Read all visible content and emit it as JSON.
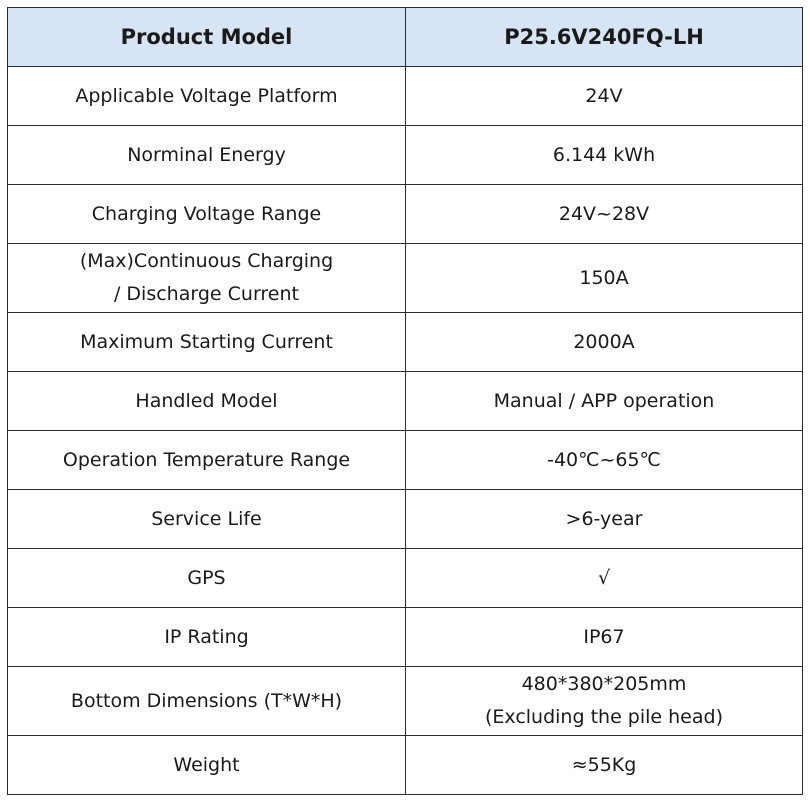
{
  "table": {
    "header": {
      "label": "Product Model",
      "value": "P25.6V240FQ-LH"
    },
    "rows": [
      {
        "label": "Applicable Voltage Platform",
        "value": "24V"
      },
      {
        "label": "Norminal Energy",
        "value": "6.144 kWh"
      },
      {
        "label": "Charging Voltage Range",
        "value": "24V~28V"
      },
      {
        "label_line1": "(Max)Continuous Charging",
        "label_line2": "/ Discharge Current",
        "value": "150A"
      },
      {
        "label": "Maximum Starting Current",
        "value": "2000A"
      },
      {
        "label": "Handled Model",
        "value": "Manual / APP operation"
      },
      {
        "label": "Operation Temperature Range",
        "value": "-40℃~65℃"
      },
      {
        "label": "Service Life",
        "value": ">6-year"
      },
      {
        "label": "GPS",
        "value": "√"
      },
      {
        "label": "IP Rating",
        "value": "IP67"
      },
      {
        "label": "Bottom Dimensions (T*W*H)",
        "value_line1": "480*380*205mm",
        "value_line2": "(Excluding the pile head)"
      },
      {
        "label": "Weight",
        "value": "≈55Kg"
      }
    ],
    "header_color": "#d6e4f5",
    "border_color": "#2b2b2b"
  }
}
